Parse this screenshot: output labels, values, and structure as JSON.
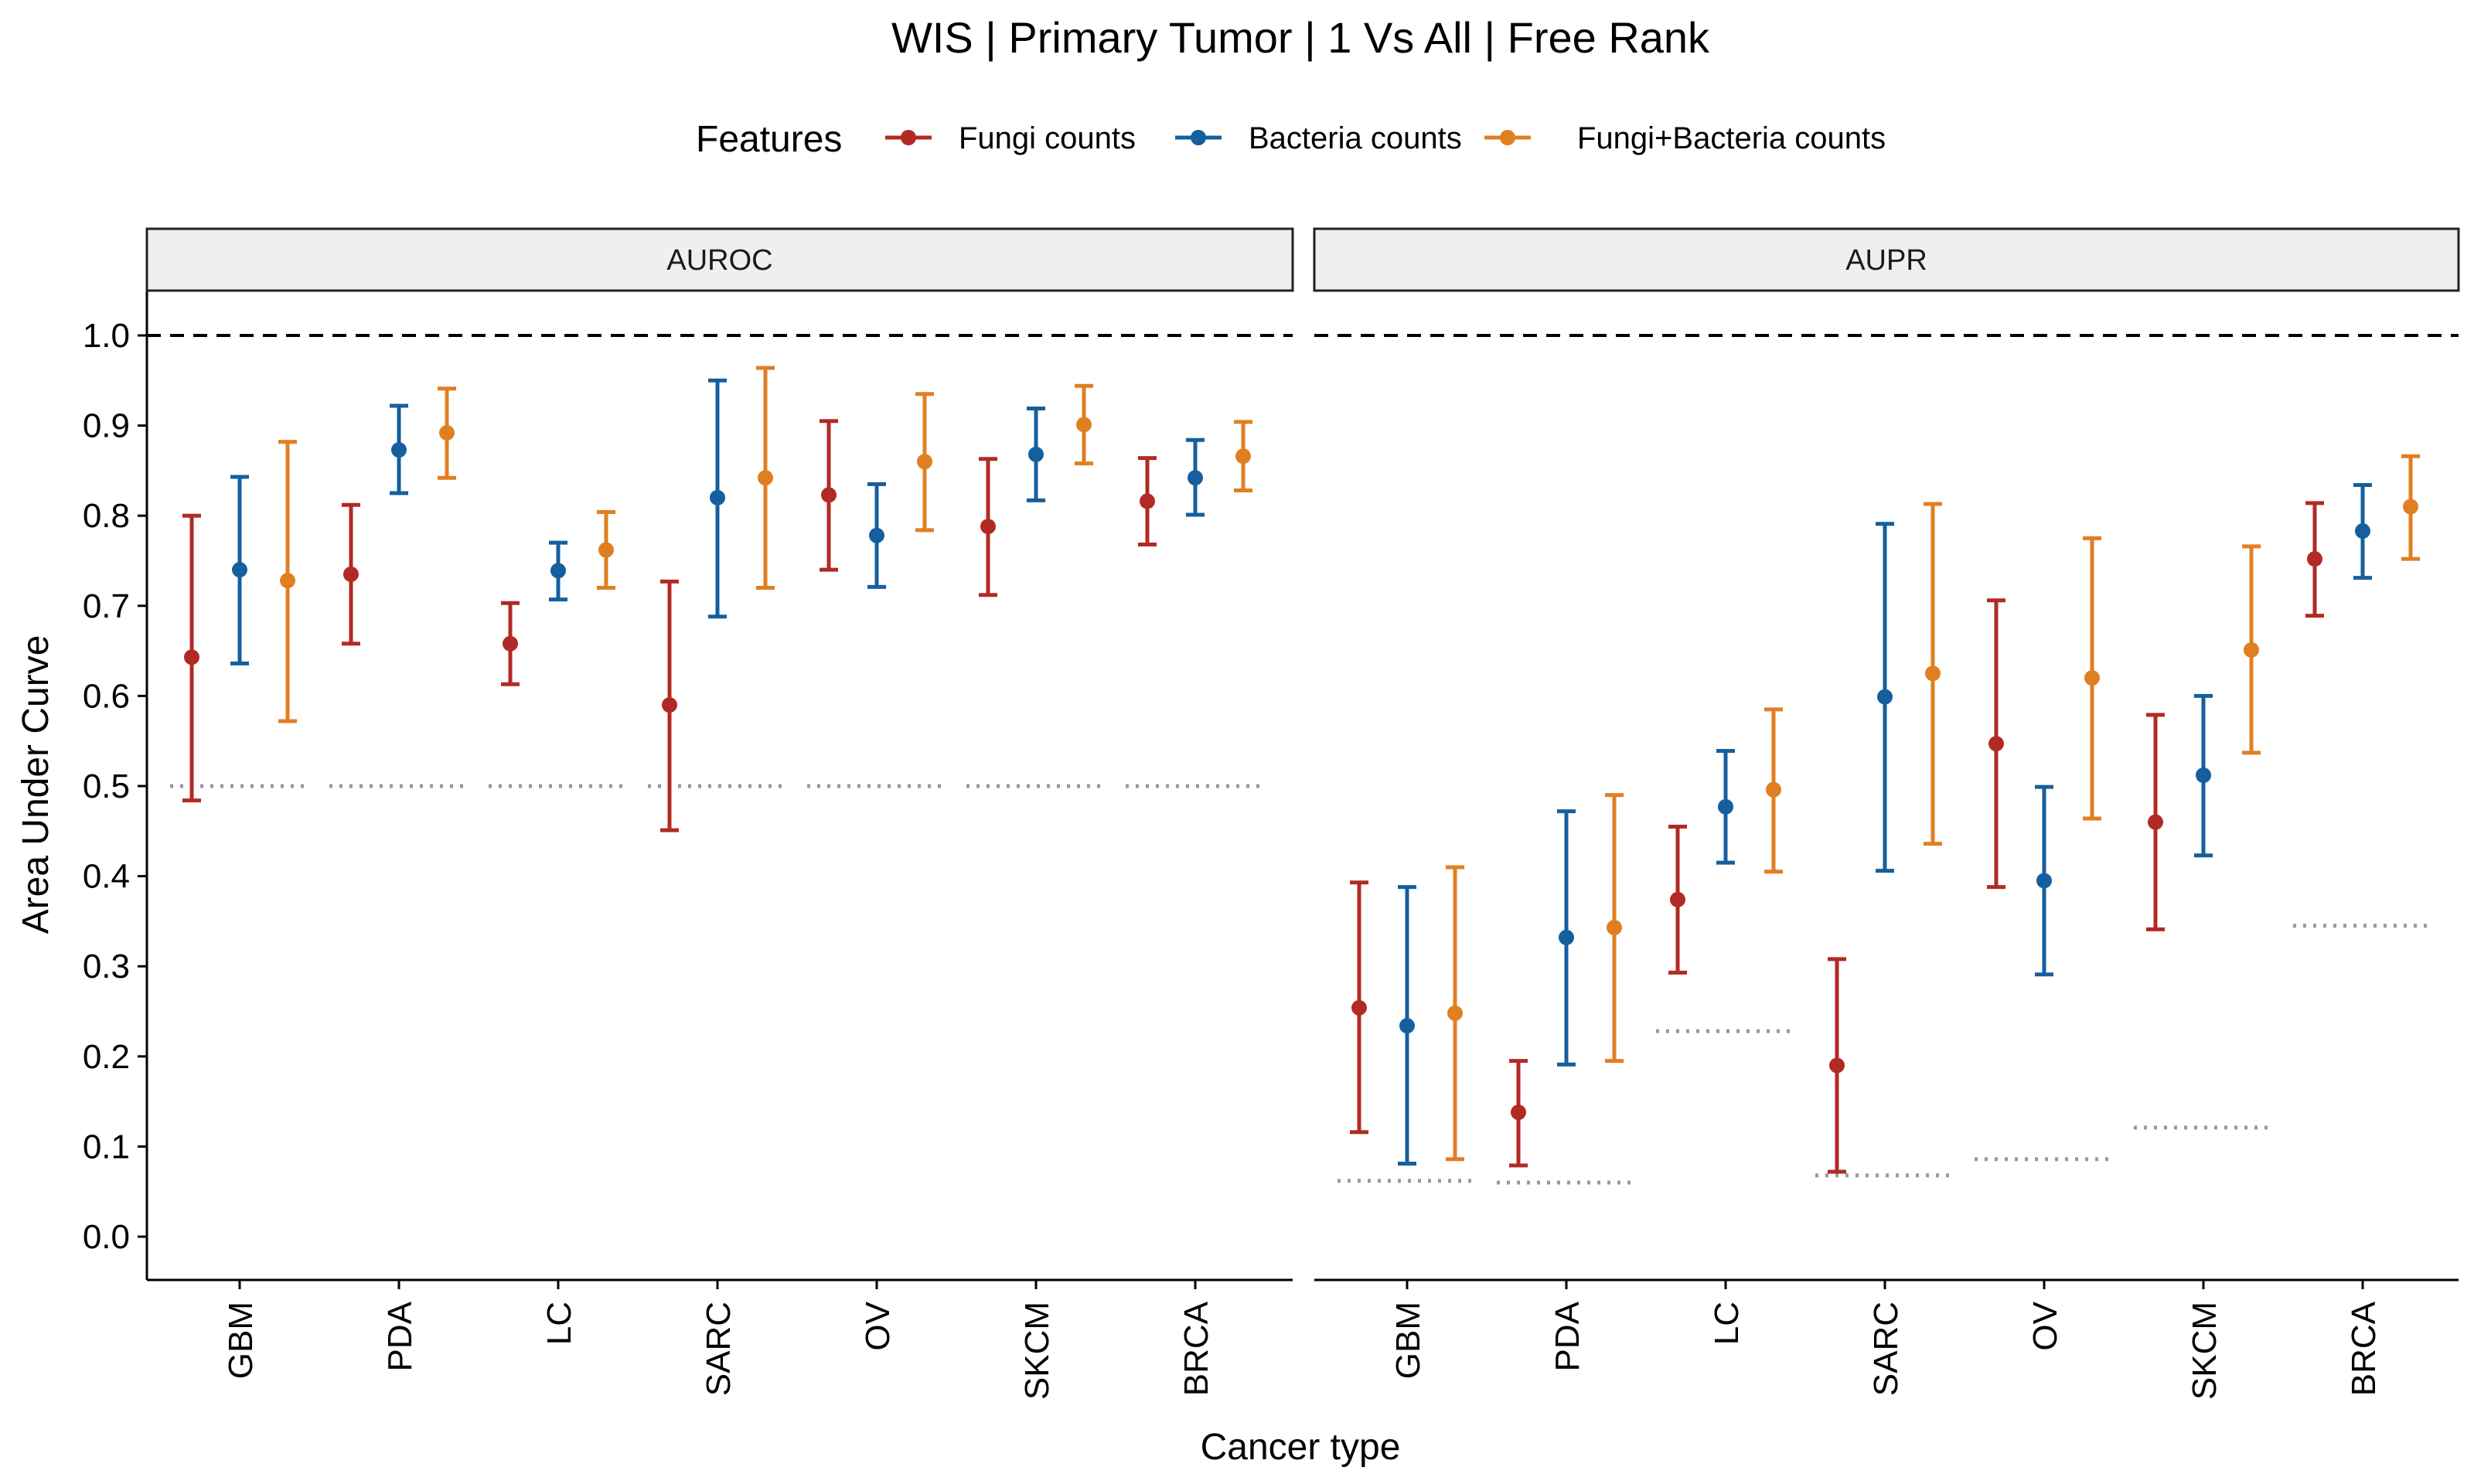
{
  "chart_data": {
    "type": "scatter",
    "title": "WIS | Primary Tumor | 1 Vs All | Free Rank",
    "xlabel": "Cancer type",
    "ylabel": "Area Under Curve",
    "ylim": [
      -0.05,
      1.05
    ],
    "yticks": [
      "0.0",
      "0.1",
      "0.2",
      "0.3",
      "0.4",
      "0.5",
      "0.6",
      "0.7",
      "0.8",
      "0.9",
      "1.0"
    ],
    "reference_line": 1.0,
    "legend": {
      "title": "Features",
      "position": "top",
      "items": [
        {
          "label": "Fungi counts",
          "color": "#b22a24"
        },
        {
          "label": "Bacteria counts",
          "color": "#155f9e"
        },
        {
          "label": "Fungi+Bacteria counts",
          "color": "#e07f22"
        }
      ]
    },
    "categories": [
      "GBM",
      "PDA",
      "LC",
      "SARC",
      "OV",
      "SKCM",
      "BRCA"
    ],
    "panels": [
      {
        "label": "AUROC",
        "baselines": [
          0.5,
          0.5,
          0.5,
          0.5,
          0.5,
          0.5,
          0.5
        ],
        "series": [
          {
            "name": "Fungi counts",
            "values": [
              0.643,
              0.735,
              0.658,
              0.59,
              0.823,
              0.788,
              0.816
            ],
            "lower": [
              0.484,
              0.658,
              0.613,
              0.451,
              0.74,
              0.712,
              0.768
            ],
            "upper": [
              0.8,
              0.812,
              0.703,
              0.727,
              0.905,
              0.863,
              0.864
            ]
          },
          {
            "name": "Bacteria counts",
            "values": [
              0.74,
              0.873,
              0.739,
              0.82,
              0.778,
              0.868,
              0.842
            ],
            "lower": [
              0.636,
              0.825,
              0.707,
              0.688,
              0.721,
              0.817,
              0.801
            ],
            "upper": [
              0.843,
              0.922,
              0.77,
              0.95,
              0.835,
              0.919,
              0.884
            ]
          },
          {
            "name": "Fungi+Bacteria counts",
            "values": [
              0.728,
              0.892,
              0.762,
              0.842,
              0.86,
              0.901,
              0.866
            ],
            "lower": [
              0.572,
              0.842,
              0.72,
              0.72,
              0.784,
              0.858,
              0.828
            ],
            "upper": [
              0.882,
              0.941,
              0.804,
              0.964,
              0.935,
              0.944,
              0.904
            ]
          }
        ]
      },
      {
        "label": "AUPR",
        "baselines": [
          0.062,
          0.06,
          0.228,
          0.068,
          0.086,
          0.121,
          0.345
        ],
        "series": [
          {
            "name": "Fungi counts",
            "values": [
              0.254,
              0.138,
              0.374,
              0.19,
              0.547,
              0.46,
              0.752
            ],
            "lower": [
              0.116,
              0.079,
              0.293,
              0.072,
              0.388,
              0.341,
              0.689
            ],
            "upper": [
              0.393,
              0.195,
              0.455,
              0.308,
              0.706,
              0.579,
              0.814
            ]
          },
          {
            "name": "Bacteria counts",
            "values": [
              0.234,
              0.332,
              0.477,
              0.599,
              0.395,
              0.512,
              0.783
            ],
            "lower": [
              0.081,
              0.191,
              0.415,
              0.406,
              0.291,
              0.423,
              0.731
            ],
            "upper": [
              0.388,
              0.472,
              0.539,
              0.791,
              0.499,
              0.6,
              0.834
            ]
          },
          {
            "name": "Fungi+Bacteria counts",
            "values": [
              0.248,
              0.343,
              0.496,
              0.625,
              0.62,
              0.651,
              0.81
            ],
            "lower": [
              0.086,
              0.195,
              0.405,
              0.436,
              0.464,
              0.537,
              0.752
            ],
            "upper": [
              0.41,
              0.49,
              0.585,
              0.813,
              0.775,
              0.766,
              0.866
            ]
          }
        ]
      }
    ]
  }
}
